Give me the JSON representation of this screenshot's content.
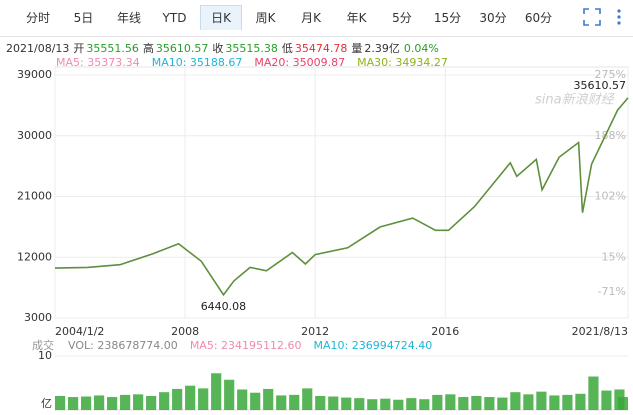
{
  "tabs": {
    "items": [
      "分时",
      "5日",
      "年线",
      "YTD",
      "日K",
      "周K",
      "月K",
      "年K",
      "5分",
      "15分",
      "30分",
      "60分"
    ],
    "selected": 4
  },
  "quote": {
    "date": "2021/08/13",
    "fields": [
      {
        "label": "开",
        "value": "35551.56",
        "color": "#2a9d2a"
      },
      {
        "label": "高",
        "value": "35610.57",
        "color": "#2a9d2a"
      },
      {
        "label": "收",
        "value": "35515.38",
        "color": "#2a9d2a"
      },
      {
        "label": "低",
        "value": "35474.78",
        "color": "#e0303a"
      },
      {
        "label": "量",
        "value": "2.39亿",
        "color": "#333333"
      }
    ],
    "change": "0.04%",
    "change_color": "#2a9d2a"
  },
  "ma": [
    {
      "text": "MA5: 35373.34",
      "color": "#f08ab0"
    },
    {
      "text": "MA10: 35188.67",
      "color": "#1fb5d6"
    },
    {
      "text": "MA20: 35009.87",
      "color": "#e8436b"
    },
    {
      "text": "MA30: 34934.27",
      "color": "#8fb21a"
    }
  ],
  "watermark": "sina新浪财经",
  "chart_data": [
    {
      "type": "line",
      "x": [
        2004.0,
        2005.0,
        2006.0,
        2007.0,
        2007.8,
        2008.5,
        2008.9,
        2009.18,
        2009.5,
        2010.0,
        2010.5,
        2011.3,
        2011.7,
        2012.0,
        2013.0,
        2014.0,
        2015.0,
        2015.7,
        2016.1,
        2016.9,
        2018.0,
        2018.2,
        2018.8,
        2018.98,
        2019.5,
        2020.1,
        2020.22,
        2020.5,
        2020.9,
        2021.3,
        2021.62
      ],
      "values": [
        10400,
        10500,
        10900,
        12500,
        14000,
        11400,
        8500,
        6440.08,
        8500,
        10500,
        10000,
        12700,
        11000,
        12400,
        13400,
        16500,
        17800,
        16000,
        16000,
        19500,
        26000,
        24000,
        26500,
        22000,
        26800,
        29000,
        18600,
        25800,
        29800,
        33800,
        35610.57
      ],
      "color": "#5f8f3c",
      "xlim": [
        2004.0,
        2021.62
      ],
      "xticks": [
        {
          "value": 2004.0,
          "label": "2004/1/2"
        },
        2008,
        2012,
        2016,
        {
          "value": 2021.62,
          "label": "2021/8/13"
        }
      ],
      "ylim": [
        3000,
        39000
      ],
      "yticks": [
        3000,
        12000,
        21000,
        30000,
        39000
      ],
      "y2lim": [
        -71,
        275
      ],
      "y2ticks": [
        {
          "value": -71,
          "label": "-71%"
        },
        {
          "value": 15,
          "label": "15%"
        },
        {
          "value": 102,
          "label": "102%"
        },
        {
          "value": 188,
          "label": "188%"
        },
        {
          "value": 275,
          "label": "275%"
        }
      ],
      "annotations": [
        {
          "x": 2021.62,
          "y": 35610.57
        },
        {
          "x": 2009.18,
          "y": 6440.08
        }
      ],
      "grid": true
    },
    {
      "type": "bar",
      "title": "成交",
      "legend": [
        {
          "text": "VOL: 238678774.00",
          "color": "#888888"
        },
        {
          "text": "MA5: 234195112.60",
          "color": "#f08ab0"
        },
        {
          "text": "MA10: 236994724.40",
          "color": "#1fb5d6"
        }
      ],
      "x": [
        2004.0,
        2004.4,
        2004.8,
        2005.2,
        2005.6,
        2006.0,
        2006.4,
        2006.8,
        2007.2,
        2007.6,
        2008.0,
        2008.4,
        2008.8,
        2009.2,
        2009.6,
        2010.0,
        2010.4,
        2010.8,
        2011.2,
        2011.6,
        2012.0,
        2012.4,
        2012.8,
        2013.2,
        2013.6,
        2014.0,
        2014.4,
        2014.8,
        2015.2,
        2015.6,
        2016.0,
        2016.4,
        2016.8,
        2017.2,
        2017.6,
        2018.0,
        2018.4,
        2018.8,
        2019.2,
        2019.6,
        2020.0,
        2020.4,
        2020.8,
        2021.2,
        2021.6
      ],
      "values": [
        2.6,
        2.4,
        2.5,
        2.7,
        2.4,
        2.8,
        2.9,
        2.6,
        3.3,
        3.9,
        4.5,
        4.0,
        6.8,
        5.6,
        3.8,
        3.2,
        3.9,
        2.7,
        2.8,
        4.0,
        2.6,
        2.5,
        2.3,
        2.2,
        2.0,
        2.1,
        1.9,
        2.2,
        2.0,
        2.8,
        2.9,
        2.4,
        2.6,
        2.4,
        2.3,
        3.3,
        2.9,
        3.4,
        2.7,
        2.8,
        3.0,
        6.2,
        3.6,
        3.8,
        2.4
      ],
      "color": "#3aa83a",
      "xlim": [
        2004.0,
        2021.62
      ],
      "ylim": [
        0,
        10
      ],
      "yticks": [
        10
      ],
      "y_unit": "亿"
    }
  ]
}
